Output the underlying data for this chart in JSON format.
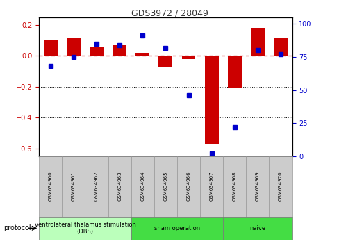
{
  "title": "GDS3972 / 28049",
  "samples": [
    "GSM634960",
    "GSM634961",
    "GSM634962",
    "GSM634963",
    "GSM634964",
    "GSM634965",
    "GSM634966",
    "GSM634967",
    "GSM634968",
    "GSM634969",
    "GSM634970"
  ],
  "log2_ratio": [
    0.1,
    0.12,
    0.06,
    0.07,
    0.02,
    -0.07,
    -0.02,
    -0.57,
    -0.21,
    0.18,
    0.12
  ],
  "percentile_rank": [
    68,
    75,
    85,
    84,
    91,
    82,
    46,
    2,
    22,
    80,
    77
  ],
  "ylim_left": [
    -0.65,
    0.25
  ],
  "ylim_right": [
    0,
    105
  ],
  "yticks_left": [
    -0.6,
    -0.4,
    -0.2,
    0.0,
    0.2
  ],
  "yticks_right": [
    0,
    25,
    50,
    75,
    100
  ],
  "bar_color": "#cc0000",
  "dot_color": "#0000cc",
  "hline_color": "#cc0000",
  "dotted_line_color": "#000000",
  "bg_color": "#ffffff",
  "bar_width": 0.6,
  "groups": [
    {
      "label": "ventrolateral thalamus stimulation\n(DBS)",
      "start": 0,
      "end": 3,
      "color": "#bbffbb"
    },
    {
      "label": "sham operation",
      "start": 4,
      "end": 7,
      "color": "#44dd44"
    },
    {
      "label": "naive",
      "start": 8,
      "end": 10,
      "color": "#44dd44"
    }
  ]
}
